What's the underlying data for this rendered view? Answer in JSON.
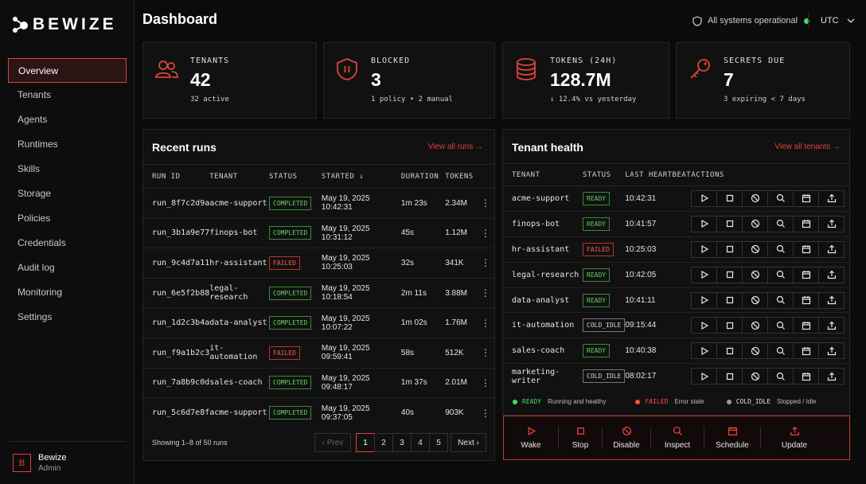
{
  "brand": {
    "name": "BEWIZE"
  },
  "nav": {
    "items": [
      "Overview",
      "Tenants",
      "Agents",
      "Runtimes",
      "Skills",
      "Storage",
      "Policies",
      "Credentials",
      "Audit log",
      "Monitoring",
      "Settings"
    ],
    "active": "Overview"
  },
  "user": {
    "initial": "B",
    "name": "Bewize",
    "role": "Admin"
  },
  "header": {
    "title": "Dashboard",
    "status": "All systems operational",
    "timezone": "UTC"
  },
  "stats": {
    "tenants": {
      "label": "TENANTS",
      "value": "42",
      "sub": "32 active"
    },
    "blocked": {
      "label": "BLOCKED",
      "value": "3",
      "sub": "1 policy • 2 manual"
    },
    "tokens": {
      "label": "TOKENS (24H)",
      "value": "128.7M",
      "sub": "↓ 12.4% vs yesterday"
    },
    "secrets": {
      "label": "SECRETS DUE",
      "value": "7",
      "sub": "3 expiring < 7 days"
    }
  },
  "runs": {
    "title": "Recent runs",
    "link": "View all runs",
    "headers": {
      "run_id": "RUN ID",
      "tenant": "TENANT",
      "status": "STATUS",
      "started": "STARTED",
      "duration": "DURATION",
      "tokens": "TOKENS"
    },
    "rows": [
      {
        "id": "run_8f7c2d9a",
        "tenant": "acme-support",
        "status": "COMPLETED",
        "started": "May 19, 2025 10:42:31",
        "duration": "1m 23s",
        "tokens": "2.34M"
      },
      {
        "id": "run_3b1a9e77",
        "tenant": "finops-bot",
        "status": "COMPLETED",
        "started": "May 19, 2025 10:31:12",
        "duration": "45s",
        "tokens": "1.12M"
      },
      {
        "id": "run_9c4d7a11",
        "tenant": "hr-assistant",
        "status": "FAILED",
        "started": "May 19, 2025 10:25:03",
        "duration": "32s",
        "tokens": "341K"
      },
      {
        "id": "run_6e5f2b88",
        "tenant": "legal-research",
        "status": "COMPLETED",
        "started": "May 19, 2025 10:18:54",
        "duration": "2m 11s",
        "tokens": "3.88M"
      },
      {
        "id": "run_1d2c3b4a",
        "tenant": "data-analyst",
        "status": "COMPLETED",
        "started": "May 19, 2025 10:07:22",
        "duration": "1m 02s",
        "tokens": "1.76M"
      },
      {
        "id": "run_f9a1b2c3",
        "tenant": "it-automation",
        "status": "FAILED",
        "started": "May 19, 2025 09:59:41",
        "duration": "58s",
        "tokens": "512K"
      },
      {
        "id": "run_7a8b9c0d",
        "tenant": "sales-coach",
        "status": "COMPLETED",
        "started": "May 19, 2025 09:48:17",
        "duration": "1m 37s",
        "tokens": "2.01M"
      },
      {
        "id": "run_5c6d7e8f",
        "tenant": "acme-support",
        "status": "COMPLETED",
        "started": "May 19, 2025 09:37:05",
        "duration": "40s",
        "tokens": "903K"
      }
    ],
    "footer": "Showing 1–8 of 50 runs",
    "pager": {
      "prev": "Prev",
      "next": "Next",
      "pages": [
        "1",
        "2",
        "3",
        "4",
        "5"
      ],
      "current": "1"
    }
  },
  "health": {
    "title": "Tenant health",
    "link": "View all tenants",
    "headers": {
      "tenant": "TENANT",
      "status": "STATUS",
      "heartbeat": "LAST HEARTBEAT",
      "actions": "ACTIONS"
    },
    "rows": [
      {
        "tenant": "acme-support",
        "status": "READY",
        "heartbeat": "10:42:31"
      },
      {
        "tenant": "finops-bot",
        "status": "READY",
        "heartbeat": "10:41:57"
      },
      {
        "tenant": "hr-assistant",
        "status": "FAILED",
        "heartbeat": "10:25:03"
      },
      {
        "tenant": "legal-research",
        "status": "READY",
        "heartbeat": "10:42:05"
      },
      {
        "tenant": "data-analyst",
        "status": "READY",
        "heartbeat": "10:41:11"
      },
      {
        "tenant": "it-automation",
        "status": "COLD_IDLE",
        "heartbeat": "09:15:44"
      },
      {
        "tenant": "sales-coach",
        "status": "READY",
        "heartbeat": "10:40:38"
      },
      {
        "tenant": "marketing-writer",
        "status": "COLD_IDLE",
        "heartbeat": "08:02:17"
      }
    ],
    "row_actions": [
      "play-icon",
      "stop-icon",
      "ban-icon",
      "search-icon",
      "calendar-icon",
      "upload-icon"
    ],
    "legend": [
      {
        "key": "READY",
        "desc": "Running and healthy",
        "color": "#4cd964"
      },
      {
        "key": "FAILED",
        "desc": "Error state",
        "color": "#ff4d42"
      },
      {
        "key": "COLD_IDLE",
        "desc": "Stopped / Idle",
        "color": "#9a9a9a"
      }
    ],
    "bulk_actions": [
      "Wake",
      "Stop",
      "Disable",
      "Inspect",
      "Schedule",
      "Update"
    ]
  },
  "colors": {
    "accent": "#e0433a",
    "success": "#4cd964",
    "bg": "#0b0b0b"
  }
}
